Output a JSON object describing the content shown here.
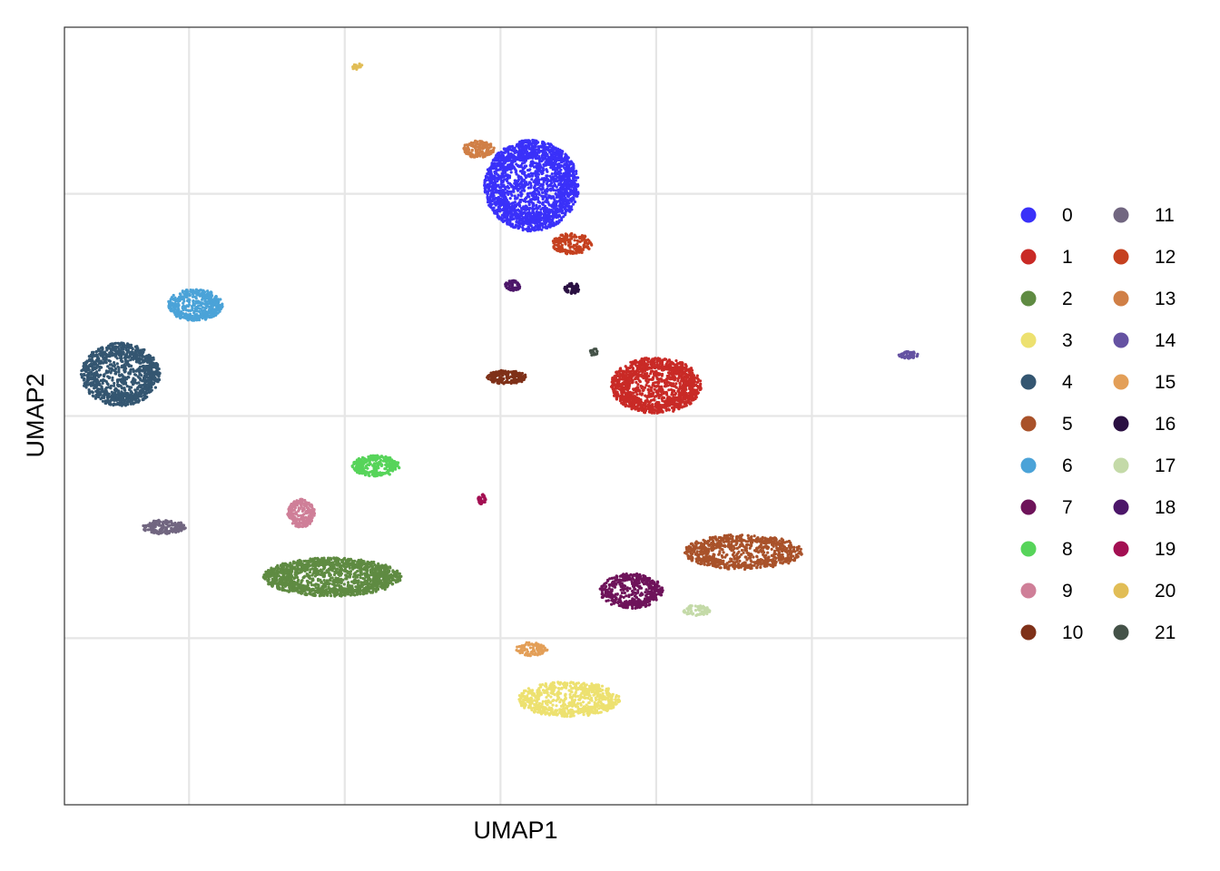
{
  "chart_data": {
    "type": "scatter",
    "title": "",
    "xlabel": "UMAP1",
    "ylabel": "UMAP2",
    "xlim": [
      -12,
      17
    ],
    "ylim": [
      -14,
      14
    ],
    "x_ticks": [
      -8,
      -3,
      2,
      7,
      12
    ],
    "y_ticks": [
      -8,
      0,
      8
    ],
    "tick_labels_shown": false,
    "grid": true,
    "legend_position": "right",
    "legend_columns": 2,
    "clusters": [
      {
        "name": "0",
        "color": "#3A31F9",
        "center": [
          3.0,
          8.3
        ],
        "spread": [
          2.4,
          2.6
        ],
        "points": 2200
      },
      {
        "name": "1",
        "color": "#C92A26",
        "center": [
          7.0,
          1.1
        ],
        "spread": [
          2.3,
          1.6
        ],
        "points": 1300
      },
      {
        "name": "2",
        "color": "#5F8B42",
        "center": [
          -3.4,
          -5.8
        ],
        "spread": [
          3.5,
          1.1
        ],
        "points": 1500
      },
      {
        "name": "3",
        "color": "#EDE170",
        "center": [
          4.2,
          -10.2
        ],
        "spread": [
          2.6,
          1.0
        ],
        "points": 700
      },
      {
        "name": "4",
        "color": "#345671",
        "center": [
          -10.2,
          1.5
        ],
        "spread": [
          2.0,
          1.8
        ],
        "points": 1100
      },
      {
        "name": "5",
        "color": "#A9522A",
        "center": [
          9.8,
          -4.9
        ],
        "spread": [
          3.0,
          1.0
        ],
        "points": 800
      },
      {
        "name": "6",
        "color": "#4BA3D8",
        "center": [
          -7.8,
          4.0
        ],
        "spread": [
          1.4,
          0.9
        ],
        "points": 500
      },
      {
        "name": "7",
        "color": "#6E135A",
        "center": [
          6.2,
          -6.3
        ],
        "spread": [
          1.6,
          1.0
        ],
        "points": 450
      },
      {
        "name": "8",
        "color": "#57D45A",
        "center": [
          -2.0,
          -1.8
        ],
        "spread": [
          1.2,
          0.6
        ],
        "points": 300
      },
      {
        "name": "9",
        "color": "#CF7F98",
        "center": [
          -4.4,
          -3.5
        ],
        "spread": [
          0.7,
          0.8
        ],
        "points": 250
      },
      {
        "name": "10",
        "color": "#7F3119",
        "center": [
          2.2,
          1.4
        ],
        "spread": [
          1.0,
          0.4
        ],
        "points": 200
      },
      {
        "name": "11",
        "color": "#716680",
        "center": [
          -8.8,
          -4.0
        ],
        "spread": [
          1.1,
          0.4
        ],
        "points": 180
      },
      {
        "name": "12",
        "color": "#C5401F",
        "center": [
          4.3,
          6.2
        ],
        "spread": [
          1.0,
          0.6
        ],
        "points": 200
      },
      {
        "name": "13",
        "color": "#D07F46",
        "center": [
          1.3,
          9.6
        ],
        "spread": [
          0.8,
          0.5
        ],
        "points": 160
      },
      {
        "name": "14",
        "color": "#6552A2",
        "center": [
          15.1,
          2.2
        ],
        "spread": [
          0.5,
          0.2
        ],
        "points": 60
      },
      {
        "name": "15",
        "color": "#E39F58",
        "center": [
          3.0,
          -8.4
        ],
        "spread": [
          0.8,
          0.4
        ],
        "points": 90
      },
      {
        "name": "16",
        "color": "#2A1042",
        "center": [
          4.3,
          4.6
        ],
        "spread": [
          0.4,
          0.3
        ],
        "points": 60
      },
      {
        "name": "17",
        "color": "#C4DAA8",
        "center": [
          8.3,
          -7.0
        ],
        "spread": [
          0.7,
          0.3
        ],
        "points": 70
      },
      {
        "name": "18",
        "color": "#4C1669",
        "center": [
          2.4,
          4.7
        ],
        "spread": [
          0.4,
          0.3
        ],
        "points": 60
      },
      {
        "name": "19",
        "color": "#A30F52",
        "center": [
          1.4,
          -3.0
        ],
        "spread": [
          0.2,
          0.3
        ],
        "points": 40
      },
      {
        "name": "20",
        "color": "#E1BD56",
        "center": [
          -2.6,
          12.6
        ],
        "spread": [
          0.3,
          0.2
        ],
        "points": 20
      },
      {
        "name": "21",
        "color": "#445248",
        "center": [
          5.0,
          2.3
        ],
        "spread": [
          0.2,
          0.2
        ],
        "points": 20
      }
    ]
  }
}
